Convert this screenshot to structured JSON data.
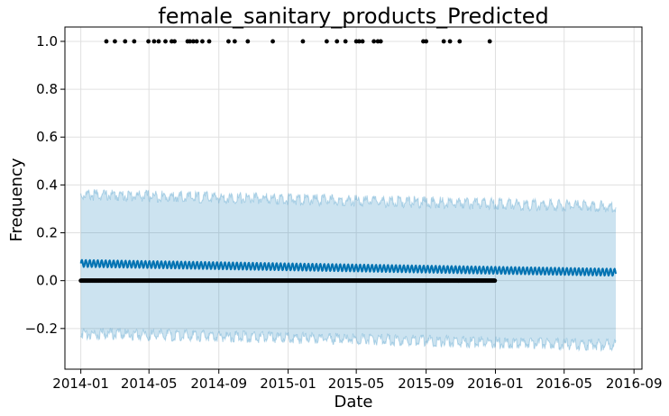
{
  "chart_data": {
    "type": "line",
    "title": "female_sanitary_products_Predicted",
    "xlabel": "Date",
    "ylabel": "Frequency",
    "x_axis_type": "date",
    "xlim": [
      "2013-12-04",
      "2016-09-15"
    ],
    "ylim": [
      -0.37,
      1.06
    ],
    "x_ticks": [
      "2014-01",
      "2014-05",
      "2014-09",
      "2015-01",
      "2015-05",
      "2015-09",
      "2016-01",
      "2016-05",
      "2016-09"
    ],
    "y_ticks": [
      -0.2,
      0.0,
      0.2,
      0.4,
      0.6,
      0.8,
      1.0
    ],
    "grid": true,
    "colors": {
      "forecast_line": "#0072b2",
      "uncertainty_band": "#0072b2",
      "observed_points": "#000000",
      "grid": "#e0e0e0"
    },
    "forecast": {
      "start": "2014-01-01",
      "end": "2016-07-31",
      "yhat_start": 0.072,
      "yhat_end": 0.035,
      "weekly_amplitude": 0.015,
      "upper_start": 0.36,
      "upper_end": 0.31,
      "lower_start": -0.22,
      "lower_end": -0.27,
      "band_noise": 0.025
    },
    "observed_zero_range": [
      "2014-01-01",
      "2015-12-31"
    ],
    "observed_ones": [
      "2014-02-15",
      "2014-03-02",
      "2014-03-20",
      "2014-04-05",
      "2014-04-30",
      "2014-05-10",
      "2014-05-18",
      "2014-05-30",
      "2014-06-10",
      "2014-06-15",
      "2014-07-08",
      "2014-07-12",
      "2014-07-18",
      "2014-07-24",
      "2014-08-03",
      "2014-08-15",
      "2014-09-18",
      "2014-09-29",
      "2014-10-22",
      "2014-12-05",
      "2015-01-27",
      "2015-03-10",
      "2015-03-28",
      "2015-04-12",
      "2015-05-01",
      "2015-05-06",
      "2015-05-12",
      "2015-06-01",
      "2015-06-08",
      "2015-06-13",
      "2015-08-27",
      "2015-09-01",
      "2015-10-02",
      "2015-10-13",
      "2015-10-30",
      "2015-12-22"
    ]
  }
}
